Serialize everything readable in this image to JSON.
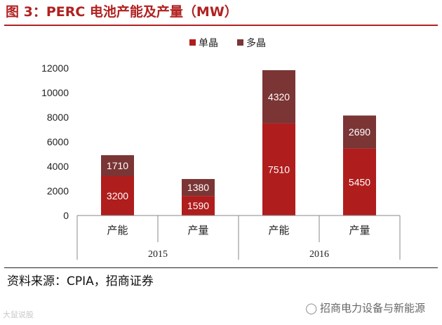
{
  "figure": {
    "title": "图 3：PERC 电池产能及产量（MW）",
    "source": "资料来源：CPIA，招商证券",
    "watermark_left": "大鼠说股",
    "watermark_right": "招商电力设备与新能源",
    "watermark_right_icon": "wechat-icon"
  },
  "colors": {
    "title": "#b22121",
    "mono": "#b01d1d",
    "multi": "#7b3535"
  },
  "chart_data": {
    "type": "bar",
    "stacked": true,
    "categories": [
      "产能",
      "产量",
      "产能",
      "产量"
    ],
    "groups": [
      {
        "label": "2015",
        "categories": [
          "产能",
          "产量"
        ]
      },
      {
        "label": "2016",
        "categories": [
          "产能",
          "产量"
        ]
      }
    ],
    "series": [
      {
        "name": "单晶",
        "values": [
          3200,
          1590,
          7510,
          5450
        ]
      },
      {
        "name": "多晶",
        "values": [
          1710,
          1380,
          4320,
          2690
        ]
      }
    ],
    "yticks": [
      "0",
      "2000",
      "4000",
      "6000",
      "8000",
      "10000",
      "12000"
    ],
    "ylim": [
      0,
      12000
    ],
    "legend_position": "top-center",
    "grid": false,
    "xlabel": "",
    "ylabel": ""
  }
}
